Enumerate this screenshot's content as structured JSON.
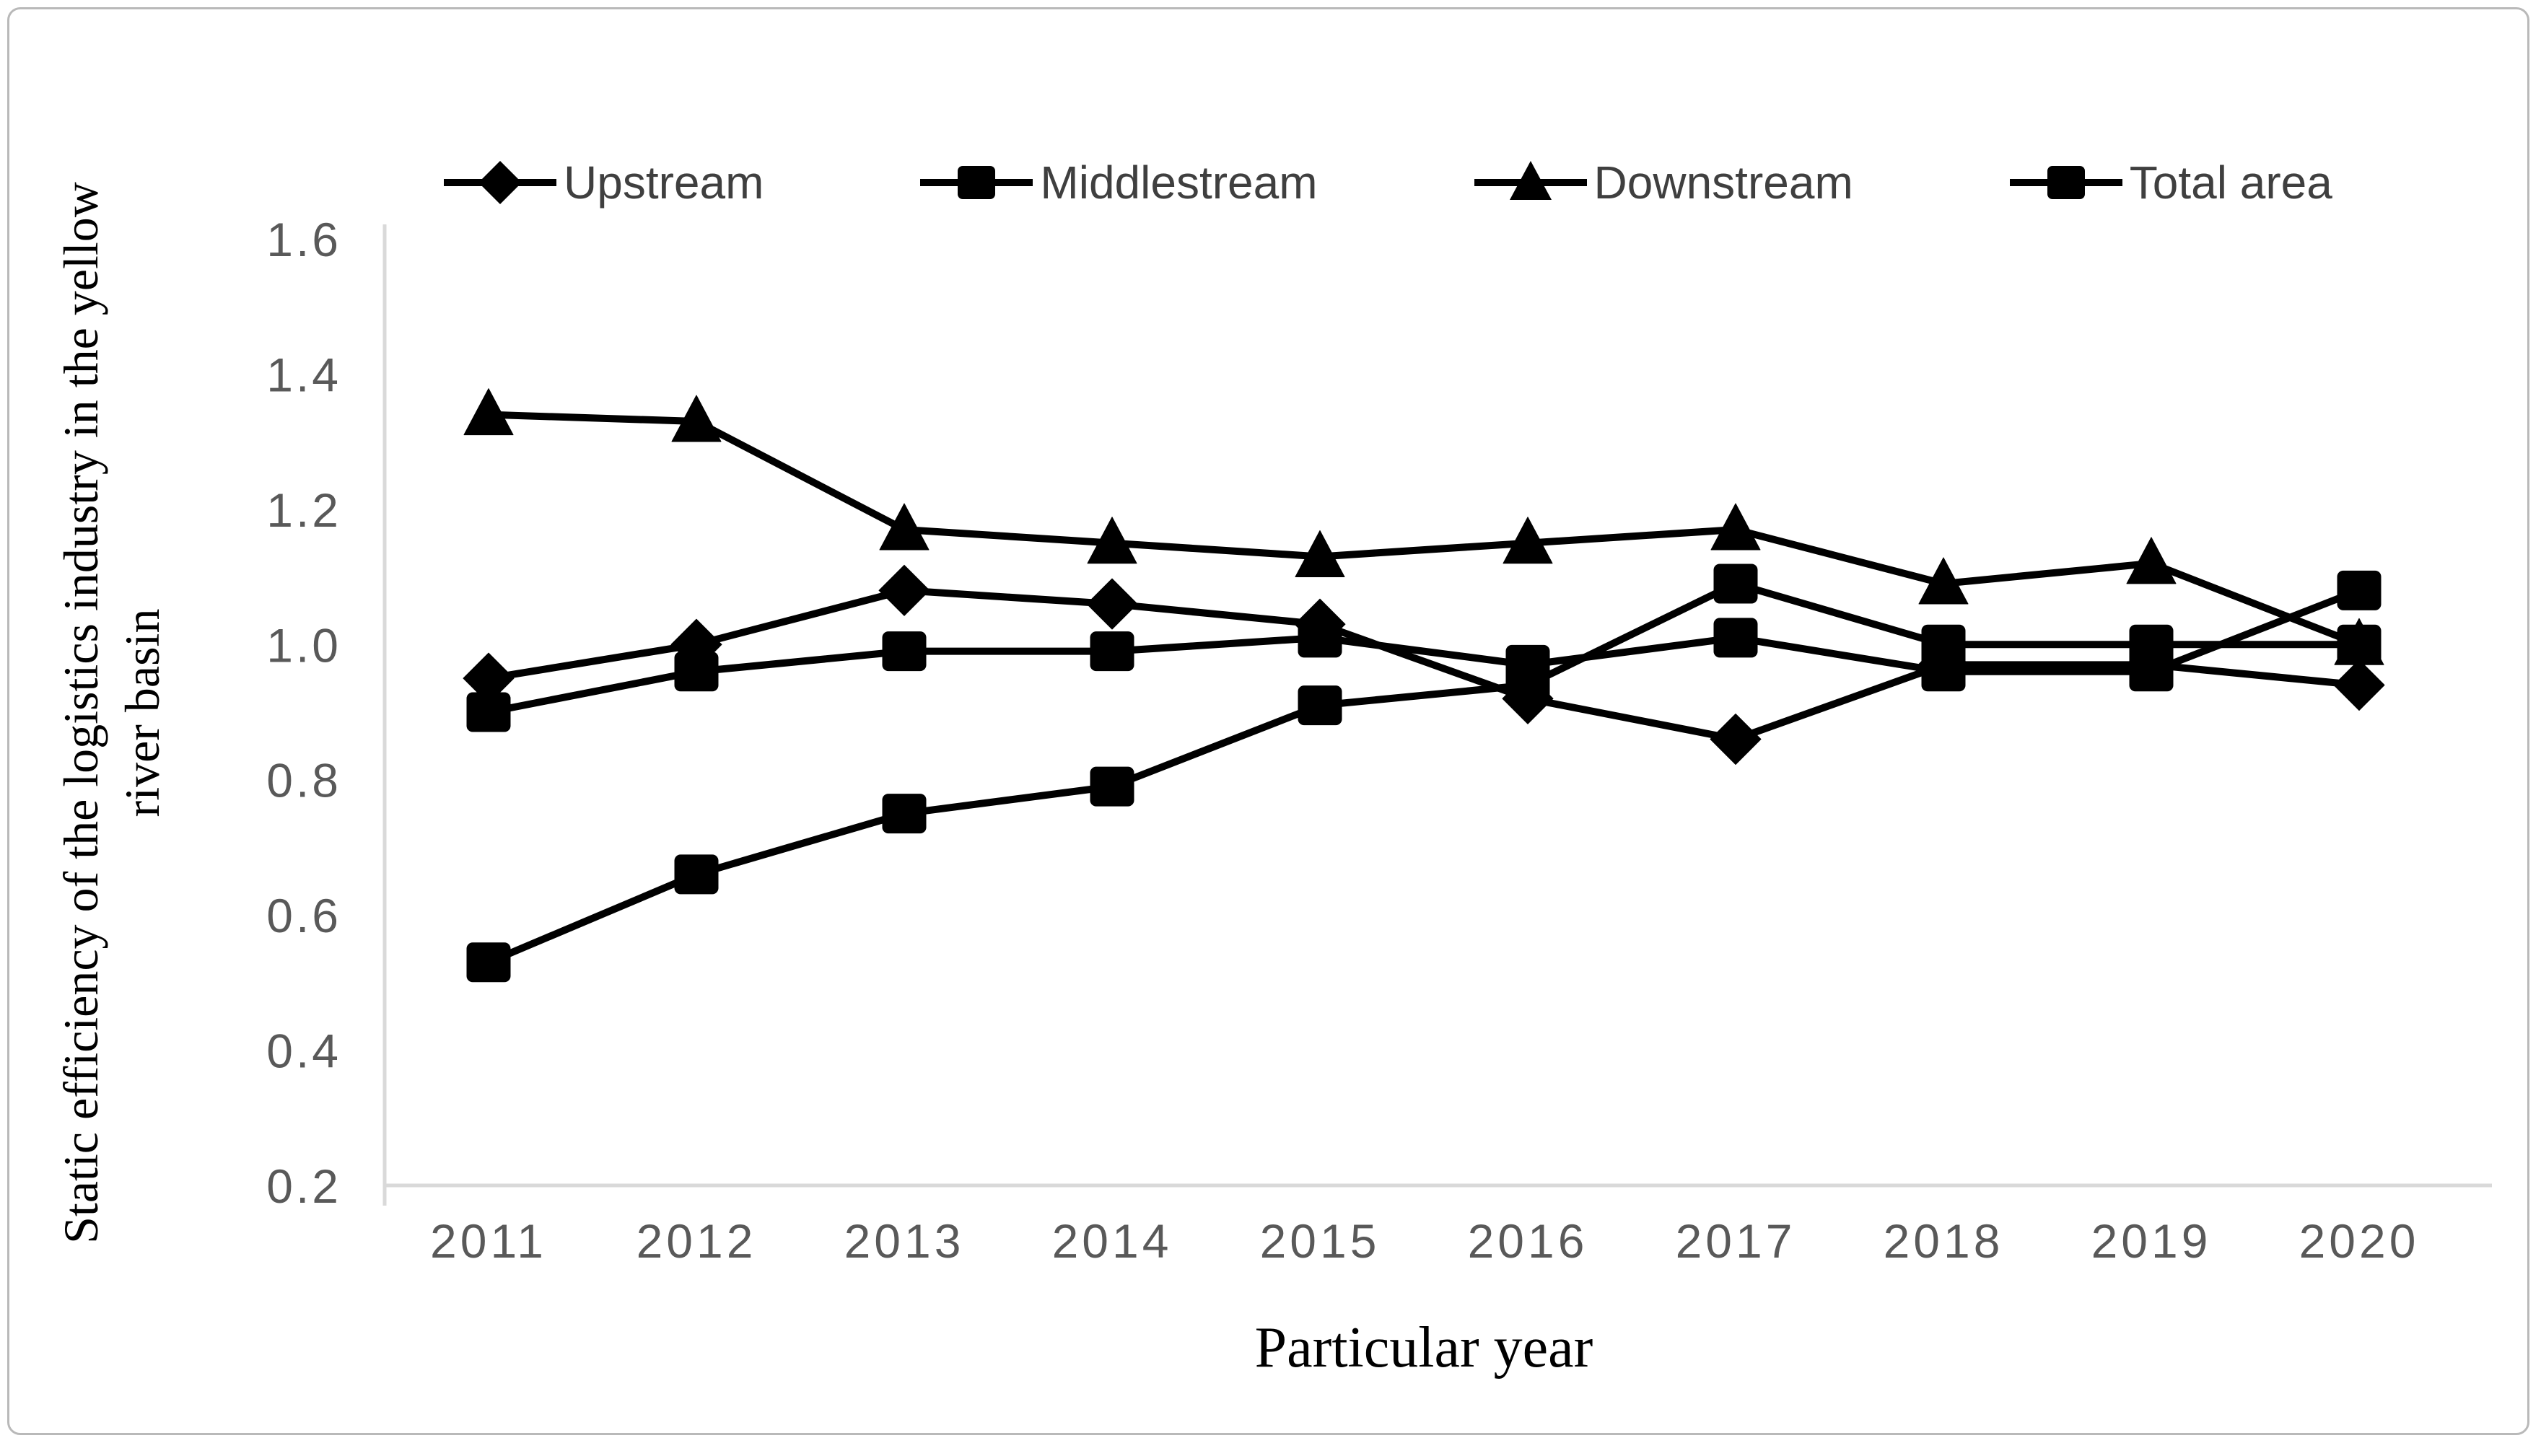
{
  "figure": {
    "y_axis_title": "Static efficiency of the logistics industry in the yellow river basin",
    "x_axis_title": "Particular year"
  },
  "chart_data": {
    "type": "line",
    "title": "",
    "xlabel": "Particular year",
    "ylabel": "Static efficiency of the logistics industry in the yellow river basin",
    "categories": [
      "2011",
      "2012",
      "2013",
      "2014",
      "2015",
      "2016",
      "2017",
      "2018",
      "2019",
      "2020"
    ],
    "series": [
      {
        "name": "Upstream",
        "marker": "diamond",
        "values": [
          0.95,
          1.0,
          1.08,
          1.06,
          1.03,
          0.92,
          0.86,
          0.97,
          0.97,
          0.94
        ]
      },
      {
        "name": "Middlestream",
        "marker": "square",
        "values": [
          0.53,
          0.66,
          0.75,
          0.79,
          0.91,
          0.94,
          1.09,
          1.0,
          1.0,
          1.0
        ]
      },
      {
        "name": "Downstream",
        "marker": "triangle",
        "values": [
          1.34,
          1.33,
          1.17,
          1.15,
          1.13,
          1.15,
          1.17,
          1.09,
          1.12,
          1.0
        ]
      },
      {
        "name": "Total area",
        "marker": "square",
        "values": [
          0.9,
          0.96,
          0.99,
          0.99,
          1.01,
          0.97,
          1.01,
          0.96,
          0.96,
          1.08
        ]
      }
    ],
    "ylim": [
      0.2,
      1.6
    ],
    "ytick_step": 0.2,
    "ytick_labels": [
      "0.2",
      "0.4",
      "0.6",
      "0.8",
      "1.0",
      "1.2",
      "1.4",
      "1.6"
    ],
    "grid": false,
    "legend_position": "top",
    "colors": {
      "series": "#000000",
      "tick_labels": "#595959",
      "axis_line": "#d9d9d9",
      "frame_border": "#b9b9b9",
      "legend_text": "#3f3f3f",
      "background": "#ffffff"
    }
  }
}
